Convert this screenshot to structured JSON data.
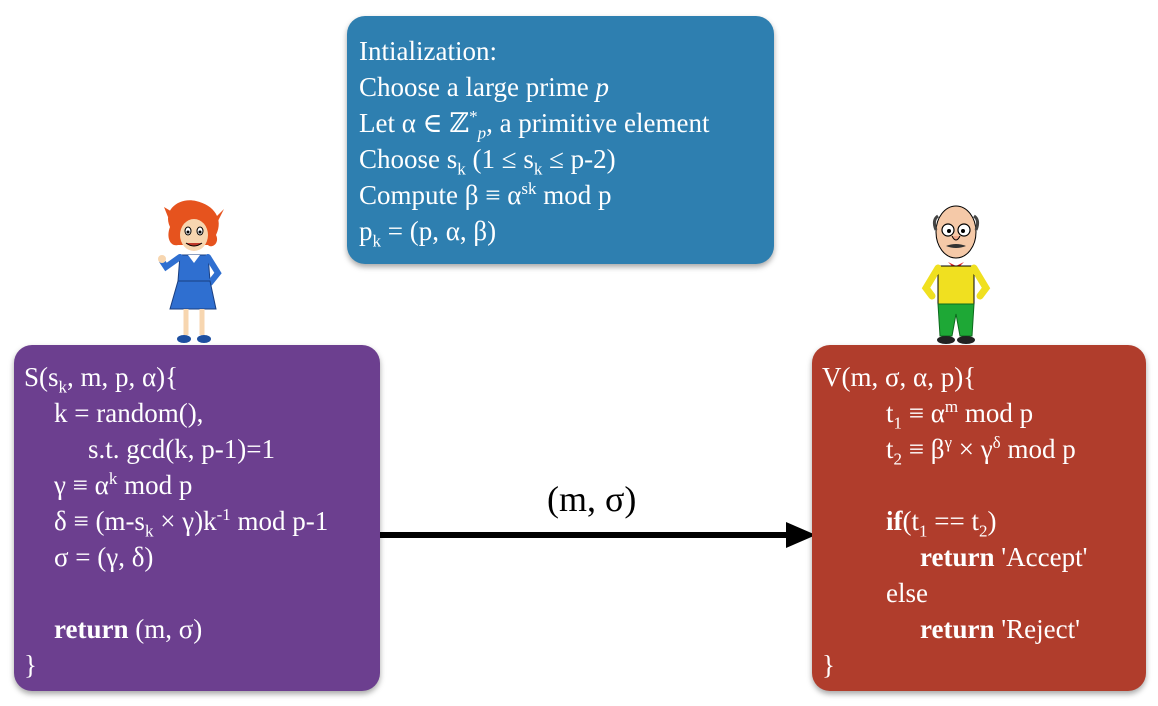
{
  "init": {
    "l1": "Intialization:",
    "l2a": "Choose a large prime ",
    "l2b": "p",
    "l3a": "Let α ∈ ℤ",
    "l3sup": "*",
    "l3sub": "p",
    "l3b": ", a primitive element",
    "l4a": "Choose s",
    "l4sub1": "k",
    "l4b": " (1 ≤ s",
    "l4sub2": "k",
    "l4c": " ≤ p-2)",
    "l5a": "Compute β ≡ α",
    "l5sup": "sk",
    "l5b": " mod p",
    "l6a": "p",
    "l6sub": "k",
    "l6b": " = (p, α, β)"
  },
  "signer": {
    "l1a": "S(s",
    "l1sub": "k",
    "l1b": ", m, p, α){",
    "l2": "k = random(),",
    "l3": "s.t. gcd(k, p-1)=1",
    "l4a": "γ ≡ α",
    "l4sup": "k",
    "l4b": " mod p",
    "l5a": "δ ≡ (m-s",
    "l5sub": "k",
    "l5b": " × γ)k",
    "l5sup": "-1",
    "l5c": " mod p-1",
    "l6": "σ = (γ, δ)",
    "l7kw": "return",
    "l7b": " (m, σ)",
    "l8": "}"
  },
  "verifier": {
    "l1": "V(m, σ, α, p){",
    "l2a": "t",
    "l2sub": "1",
    "l2b": " ≡ α",
    "l2sup": "m",
    "l2c": " mod p",
    "l3a": "t",
    "l3sub": "2",
    "l3b": " ≡ β",
    "l3sup1": "γ",
    "l3c": " × γ",
    "l3sup2": "δ",
    "l3d": " mod p",
    "l4kw": "if",
    "l4a": "(t",
    "l4sub1": "1",
    "l4b": " == t",
    "l4sub2": "2",
    "l4c": ")",
    "l5kw": "return",
    "l5b": " 'Accept'",
    "l6": "else",
    "l7kw": "return",
    "l7b": " 'Reject'",
    "l8": "}"
  },
  "message": {
    "label": "(m, σ)"
  },
  "colors": {
    "init": "#2e7fb0",
    "signer": "#6c3f8f",
    "verifier": "#b03d2c"
  },
  "icons": {
    "signer": "woman-cartoon-icon",
    "verifier": "man-cartoon-icon"
  }
}
